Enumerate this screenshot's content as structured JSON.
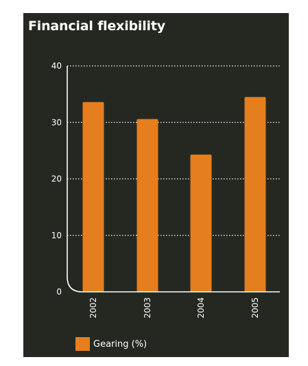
{
  "chart_data": {
    "type": "bar",
    "title": "Financial flexibility",
    "categories": [
      "2002",
      "2003",
      "2004",
      "2005"
    ],
    "series": [
      {
        "name": "Gearing (%)",
        "values": [
          33.6,
          30.6,
          24.3,
          34.5
        ]
      }
    ],
    "xlabel": "",
    "ylabel": "",
    "ylim": [
      0,
      40
    ],
    "yticks": [
      0,
      10,
      20,
      30,
      40
    ],
    "grid": "horizontal-dotted",
    "legend_position": "bottom-left"
  },
  "colors": {
    "background": "#252821",
    "bar": "#e57e1e",
    "text": "#ffffff",
    "axis": "#ffffff"
  }
}
